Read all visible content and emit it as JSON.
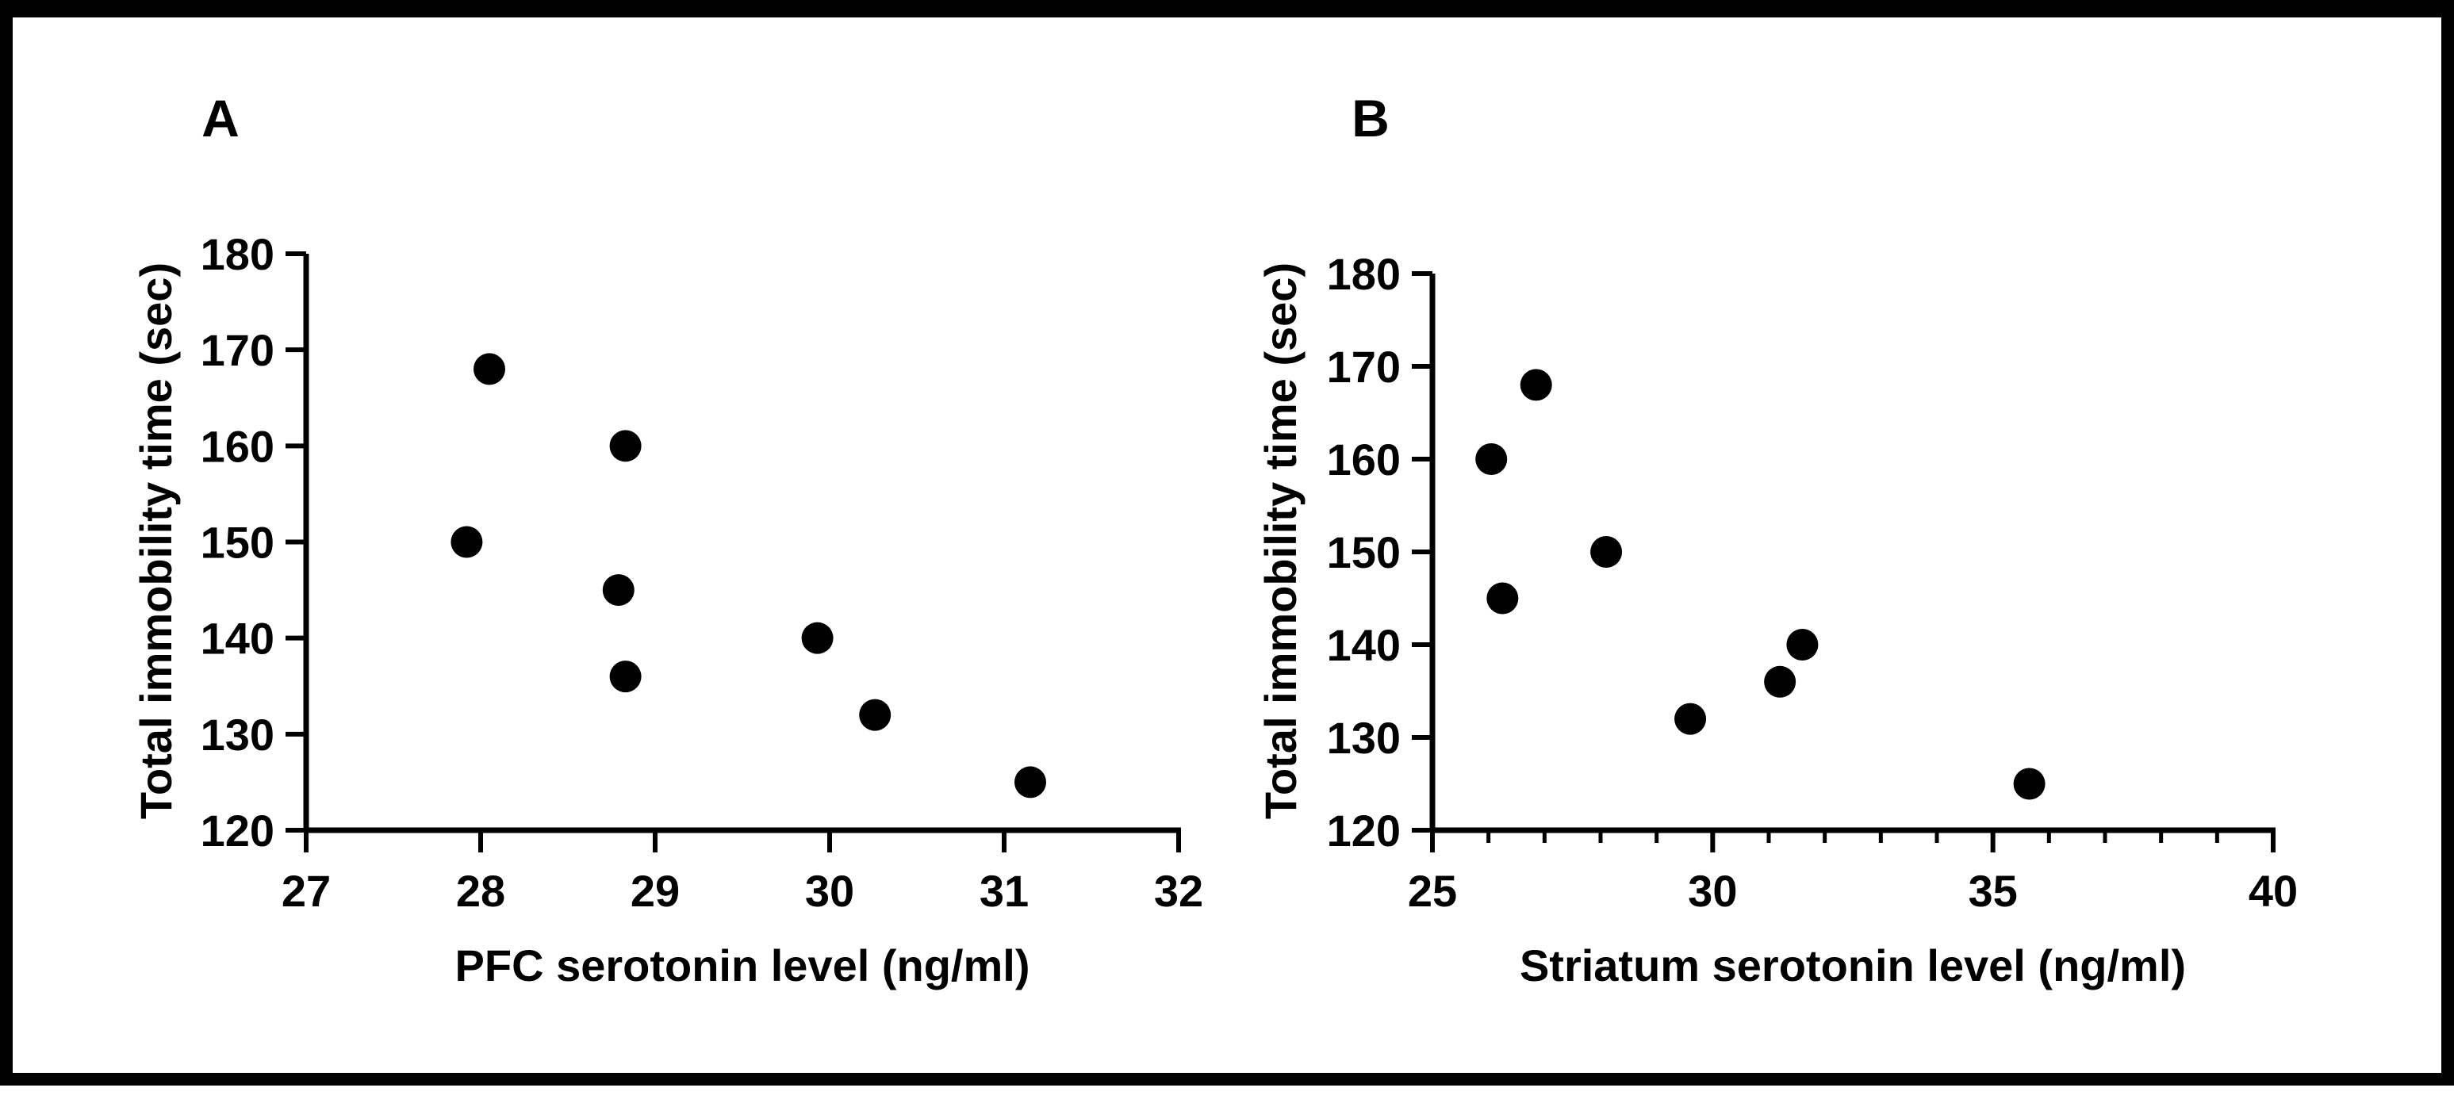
{
  "chart_data": [
    {
      "type": "scatter",
      "panel_label": "A",
      "title": "",
      "xlabel": "PFC serotonin level (ng/ml)",
      "ylabel": "Total immobility time (sec)",
      "xlim": [
        27,
        32
      ],
      "ylim": [
        120,
        180
      ],
      "xticks": [
        27,
        28,
        29,
        30,
        31,
        32
      ],
      "yticks": [
        120,
        130,
        140,
        150,
        160,
        170,
        180
      ],
      "x_minor_per_major": 1,
      "points": [
        {
          "x": 28.05,
          "y": 168
        },
        {
          "x": 27.92,
          "y": 150
        },
        {
          "x": 28.83,
          "y": 160
        },
        {
          "x": 28.79,
          "y": 145
        },
        {
          "x": 28.83,
          "y": 136
        },
        {
          "x": 29.93,
          "y": 140
        },
        {
          "x": 30.26,
          "y": 132
        },
        {
          "x": 31.15,
          "y": 125
        }
      ]
    },
    {
      "type": "scatter",
      "panel_label": "B",
      "title": "",
      "xlabel": "Striatum serotonin level (ng/ml)",
      "ylabel": "Total immobility time (sec)",
      "xlim": [
        25,
        40
      ],
      "ylim": [
        120,
        180
      ],
      "xticks": [
        25,
        30,
        35,
        40
      ],
      "yticks": [
        120,
        130,
        140,
        150,
        160,
        170,
        180
      ],
      "x_minor_per_major": 5,
      "points": [
        {
          "x": 26.85,
          "y": 168
        },
        {
          "x": 26.05,
          "y": 160
        },
        {
          "x": 28.1,
          "y": 150
        },
        {
          "x": 26.25,
          "y": 145
        },
        {
          "x": 31.6,
          "y": 140
        },
        {
          "x": 31.2,
          "y": 136
        },
        {
          "x": 29.6,
          "y": 132
        },
        {
          "x": 35.65,
          "y": 125
        }
      ]
    }
  ]
}
